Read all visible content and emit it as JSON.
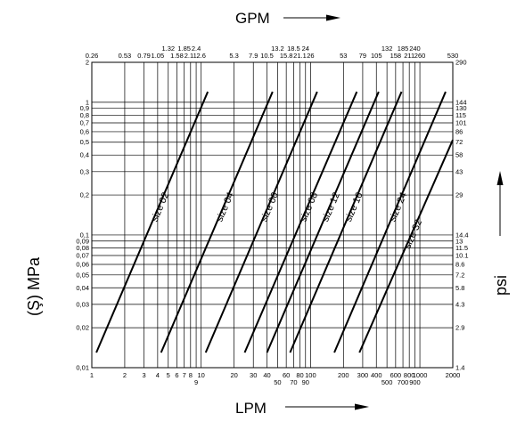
{
  "chart_data": {
    "type": "line",
    "x_axis_bottom": {
      "title": "LPM",
      "scale": "log",
      "range": [
        1,
        2000
      ],
      "ticks": [
        {
          "v": 1,
          "label": "1"
        },
        {
          "v": 2,
          "label": "2"
        },
        {
          "v": 3,
          "label": "3"
        },
        {
          "v": 4,
          "label": "4"
        },
        {
          "v": 5,
          "label": "5"
        },
        {
          "v": 6,
          "label": "6"
        },
        {
          "v": 7,
          "label": "7"
        },
        {
          "v": 8,
          "label": "8"
        },
        {
          "v": 9,
          "label": "9"
        },
        {
          "v": 10,
          "label": "10"
        },
        {
          "v": 20,
          "label": "20"
        },
        {
          "v": 30,
          "label": "30"
        },
        {
          "v": 40,
          "label": "40"
        },
        {
          "v": 50,
          "label": "50"
        },
        {
          "v": 60,
          "label": "60"
        },
        {
          "v": 70,
          "label": "70"
        },
        {
          "v": 80,
          "label": "80"
        },
        {
          "v": 90,
          "label": "90"
        },
        {
          "v": 100,
          "label": "100"
        },
        {
          "v": 200,
          "label": "200"
        },
        {
          "v": 300,
          "label": "300"
        },
        {
          "v": 400,
          "label": "400"
        },
        {
          "v": 500,
          "label": "500"
        },
        {
          "v": 600,
          "label": "600"
        },
        {
          "v": 700,
          "label": "700"
        },
        {
          "v": 800,
          "label": "800"
        },
        {
          "v": 900,
          "label": "900"
        },
        {
          "v": 1000,
          "label": "1000"
        },
        {
          "v": 2000,
          "label": "2000"
        }
      ]
    },
    "x_axis_top": {
      "title": "GPM",
      "ticks": [
        {
          "v": 1,
          "label": "0.26"
        },
        {
          "v": 2,
          "label": "0.53"
        },
        {
          "v": 3,
          "label": "0.79"
        },
        {
          "v": 4,
          "label": "1.05"
        },
        {
          "v": 5,
          "label": "1.32"
        },
        {
          "v": 6,
          "label": "1.58"
        },
        {
          "v": 7,
          "label": "1.85"
        },
        {
          "v": 8,
          "label": "2.11"
        },
        {
          "v": 9,
          "label": "2.4"
        },
        {
          "v": 10,
          "label": "2.6"
        },
        {
          "v": 20,
          "label": "5.3"
        },
        {
          "v": 30,
          "label": "7.9"
        },
        {
          "v": 40,
          "label": "10.5"
        },
        {
          "v": 50,
          "label": "13.2"
        },
        {
          "v": 60,
          "label": "15.8"
        },
        {
          "v": 70,
          "label": "18.5"
        },
        {
          "v": 80,
          "label": "21.1"
        },
        {
          "v": 90,
          "label": "24"
        },
        {
          "v": 100,
          "label": "26"
        },
        {
          "v": 200,
          "label": "53"
        },
        {
          "v": 300,
          "label": "79"
        },
        {
          "v": 400,
          "label": "105"
        },
        {
          "v": 500,
          "label": "132"
        },
        {
          "v": 600,
          "label": "158"
        },
        {
          "v": 700,
          "label": "185"
        },
        {
          "v": 800,
          "label": "211"
        },
        {
          "v": 900,
          "label": "240"
        },
        {
          "v": 1000,
          "label": "260"
        },
        {
          "v": 2000,
          "label": "530"
        }
      ]
    },
    "y_axis_left": {
      "title": "(Ş) MPa",
      "scale": "log",
      "range": [
        0.01,
        2
      ],
      "ticks": [
        {
          "v": 0.01,
          "label": "0,01"
        },
        {
          "v": 0.02,
          "label": "0,02"
        },
        {
          "v": 0.03,
          "label": "0,03"
        },
        {
          "v": 0.04,
          "label": "0,04"
        },
        {
          "v": 0.05,
          "label": "0,05"
        },
        {
          "v": 0.06,
          "label": "0,06"
        },
        {
          "v": 0.07,
          "label": "0,07"
        },
        {
          "v": 0.08,
          "label": "0,08"
        },
        {
          "v": 0.09,
          "label": "0,09"
        },
        {
          "v": 0.1,
          "label": "0,1"
        },
        {
          "v": 0.2,
          "label": "0,2"
        },
        {
          "v": 0.3,
          "label": "0,3"
        },
        {
          "v": 0.4,
          "label": "0,4"
        },
        {
          "v": 0.5,
          "label": "0,5"
        },
        {
          "v": 0.6,
          "label": "0,6"
        },
        {
          "v": 0.7,
          "label": "0,7"
        },
        {
          "v": 0.8,
          "label": "0,8"
        },
        {
          "v": 0.9,
          "label": "0,9"
        },
        {
          "v": 1,
          "label": "1"
        },
        {
          "v": 2,
          "label": "2"
        }
      ]
    },
    "y_axis_right": {
      "title": "psi",
      "ticks": [
        {
          "v": 0.01,
          "label": "1.4"
        },
        {
          "v": 0.02,
          "label": "2.9"
        },
        {
          "v": 0.03,
          "label": "4.3"
        },
        {
          "v": 0.04,
          "label": "5.8"
        },
        {
          "v": 0.05,
          "label": "7.2"
        },
        {
          "v": 0.06,
          "label": "8.6"
        },
        {
          "v": 0.07,
          "label": "10.1"
        },
        {
          "v": 0.08,
          "label": "11.5"
        },
        {
          "v": 0.09,
          "label": "13"
        },
        {
          "v": 0.1,
          "label": "14.4"
        },
        {
          "v": 0.2,
          "label": "29"
        },
        {
          "v": 0.3,
          "label": "43"
        },
        {
          "v": 0.4,
          "label": "58"
        },
        {
          "v": 0.5,
          "label": "72"
        },
        {
          "v": 0.6,
          "label": "86"
        },
        {
          "v": 0.7,
          "label": "101"
        },
        {
          "v": 0.8,
          "label": "115"
        },
        {
          "v": 0.9,
          "label": "130"
        },
        {
          "v": 1,
          "label": "144"
        },
        {
          "v": 2,
          "label": "290"
        }
      ]
    },
    "grid": true,
    "series": [
      {
        "name": "size 02",
        "x": [
          1.1,
          11.5
        ],
        "y": [
          0.013,
          1.2
        ]
      },
      {
        "name": "size 04",
        "x": [
          4.3,
          45
        ],
        "y": [
          0.013,
          1.2
        ]
      },
      {
        "name": "size 06",
        "x": [
          11,
          115
        ],
        "y": [
          0.013,
          1.2
        ]
      },
      {
        "name": "size 08",
        "x": [
          25,
          265
        ],
        "y": [
          0.013,
          1.2
        ]
      },
      {
        "name": "size 12",
        "x": [
          40,
          420
        ],
        "y": [
          0.013,
          1.2
        ]
      },
      {
        "name": "size 16",
        "x": [
          65,
          680
        ],
        "y": [
          0.013,
          1.2
        ]
      },
      {
        "name": "size 24",
        "x": [
          165,
          1720
        ],
        "y": [
          0.013,
          1.2
        ]
      },
      {
        "name": "size 32",
        "x": [
          280,
          2000
        ],
        "y": [
          0.013,
          0.52
        ]
      }
    ]
  }
}
